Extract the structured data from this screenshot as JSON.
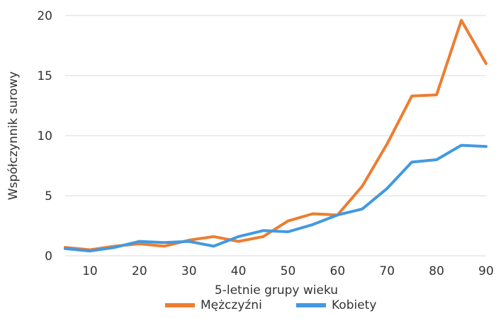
{
  "chart_data": {
    "type": "line",
    "title": "",
    "xlabel": "5-letnie grupy wieku",
    "ylabel": "Współczynnik surowy",
    "xlim": [
      5,
      90
    ],
    "ylim": [
      0,
      20
    ],
    "x_ticks": [
      10,
      20,
      30,
      40,
      50,
      60,
      70,
      80,
      90
    ],
    "y_ticks": [
      0,
      5,
      10,
      15,
      20
    ],
    "grid": "horizontal",
    "legend_position": "bottom",
    "x": [
      5,
      10,
      15,
      20,
      25,
      30,
      35,
      40,
      45,
      50,
      55,
      60,
      65,
      70,
      75,
      80,
      85,
      90
    ],
    "series": [
      {
        "name": "Mężczyźni",
        "color": "#ED7D31",
        "values": [
          0.7,
          0.5,
          0.8,
          1.0,
          0.8,
          1.3,
          1.6,
          1.2,
          1.6,
          2.9,
          3.5,
          3.4,
          5.8,
          9.3,
          13.3,
          13.4,
          19.6,
          16.0
        ]
      },
      {
        "name": "Kobiety",
        "color": "#4299E1",
        "values": [
          0.6,
          0.4,
          0.7,
          1.2,
          1.1,
          1.2,
          0.8,
          1.6,
          2.1,
          2.0,
          2.6,
          3.4,
          3.9,
          5.6,
          7.8,
          8.0,
          9.2,
          9.1
        ]
      }
    ]
  }
}
